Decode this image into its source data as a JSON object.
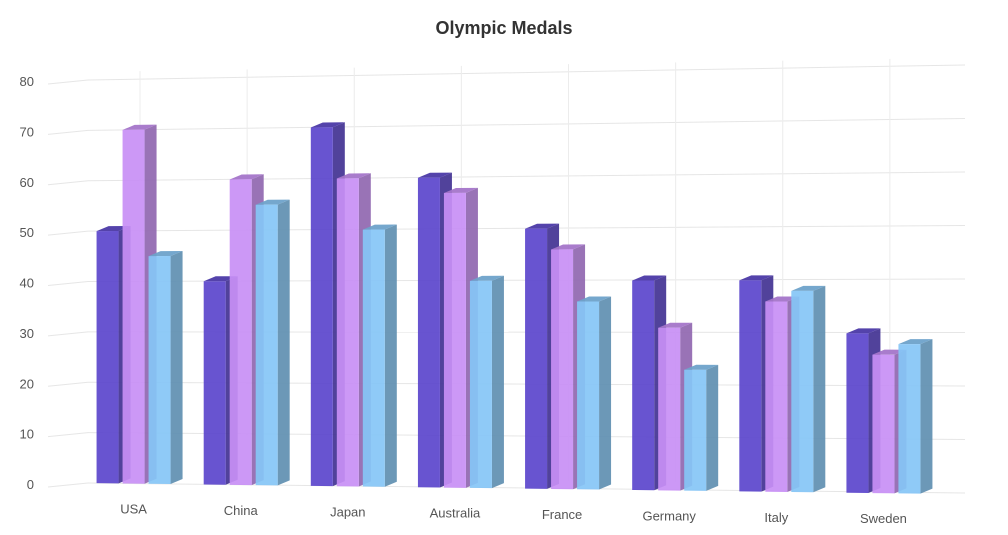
{
  "chart_data": {
    "type": "bar",
    "title": "Olympic Medals",
    "xlabel": "",
    "ylabel": "",
    "ylim": [
      0,
      80
    ],
    "yticks": [
      0,
      10,
      20,
      30,
      40,
      50,
      60,
      70,
      80
    ],
    "categories": [
      "USA",
      "China",
      "Japan",
      "Australia",
      "France",
      "Germany",
      "Italy",
      "Sweden"
    ],
    "series": [
      {
        "color": "#5b45cc",
        "values": [
          50,
          40,
          70,
          60,
          50,
          40,
          40,
          30
        ]
      },
      {
        "color": "#c88ff5",
        "values": [
          70,
          60,
          60,
          57,
          46,
          31,
          36,
          26
        ]
      },
      {
        "color": "#86c6f6",
        "values": [
          45,
          55,
          50,
          40,
          36,
          23,
          38,
          28
        ]
      }
    ],
    "grid": true,
    "legend": "none",
    "style": "3d-columns"
  }
}
